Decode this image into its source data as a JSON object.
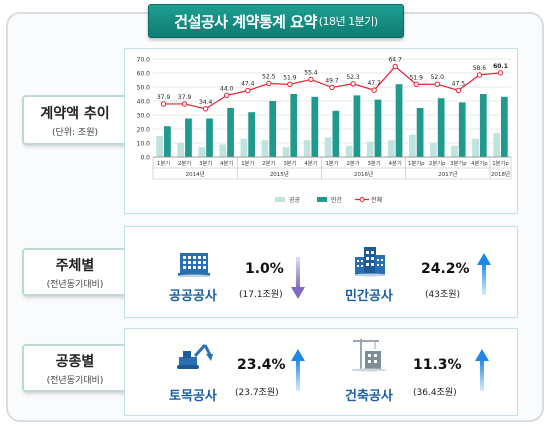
{
  "title": {
    "main": "건설공사 계약통계 요약",
    "sub": "(18년 1분기)"
  },
  "sections": {
    "trend": {
      "label": "계약액 추이",
      "note": "(단위: 조원)"
    },
    "subject": {
      "label": "주체별",
      "note": "(전년동기대비)"
    },
    "work": {
      "label": "공종별",
      "note": "(전년동기대비)"
    }
  },
  "metrics": {
    "public": {
      "name": "공공공사",
      "pct": "1.0%",
      "amount": "(17.1조원)",
      "direction": "down"
    },
    "private": {
      "name": "민간공사",
      "pct": "24.2%",
      "amount": "(43조원)",
      "direction": "up"
    },
    "civil": {
      "name": "토목공사",
      "pct": "23.4%",
      "amount": "(23.7조원)",
      "direction": "up"
    },
    "building": {
      "name": "건축공사",
      "pct": "11.3%",
      "amount": "(36.4조원)",
      "direction": "up"
    }
  },
  "colors": {
    "public_bar": "#bfe3df",
    "private_bar": "#1f9a8c",
    "total_line": "#e4202f",
    "arrow_up": "#1e88e5",
    "arrow_down": "#8e7cc3",
    "title_bg": "#0e7c72"
  },
  "icons": {
    "public": "public-building-icon",
    "private": "private-building-icon",
    "civil": "excavator-icon",
    "building": "crane-building-icon"
  },
  "chart_data": {
    "type": "bar",
    "categories": [
      "1분기",
      "2분기",
      "3분기",
      "4분기",
      "1분기",
      "2분기",
      "3분기",
      "4분기",
      "1분기",
      "2분기",
      "3분기",
      "4분기",
      "1분기p",
      "2분기p",
      "3분기p",
      "4분기p",
      "1분기p"
    ],
    "year_groups": [
      {
        "label": "2014년",
        "count": 4
      },
      {
        "label": "2015년",
        "count": 4
      },
      {
        "label": "2016년",
        "count": 4
      },
      {
        "label": "2017년",
        "count": 4
      },
      {
        "label": "2018년",
        "count": 1
      }
    ],
    "series": [
      {
        "name": "공공",
        "type": "bar",
        "values": [
          15,
          10,
          7,
          9,
          13,
          12,
          7,
          12,
          14,
          8,
          11,
          12,
          16,
          10,
          8,
          13,
          17
        ]
      },
      {
        "name": "민간",
        "type": "bar",
        "values": [
          22,
          27.5,
          27.5,
          35,
          32,
          40,
          45,
          43,
          33,
          44,
          41,
          52,
          35,
          42,
          39,
          45,
          43
        ]
      },
      {
        "name": "전체",
        "type": "line",
        "values": [
          37.9,
          37.9,
          34.4,
          44.0,
          47.4,
          52.5,
          51.9,
          55.4,
          49.7,
          52.3,
          47.7,
          64.7,
          51.9,
          52.0,
          47.5,
          58.6,
          60.1
        ]
      }
    ],
    "data_labels": [
      "37.9",
      "37.9",
      "34.4",
      "44.0",
      "47.4",
      "52.5",
      "51.9",
      "55.4",
      "49.7",
      "52.3",
      "47.7",
      "64.7",
      "51.9",
      "52.0",
      "47.5",
      "58.6",
      "60.1"
    ],
    "ylim": [
      0,
      70
    ],
    "yticks": [
      "0.0",
      "10.0",
      "20.0",
      "30.0",
      "40.0",
      "50.0",
      "60.0",
      "70.0"
    ],
    "grid": true,
    "legend_position": "bottom"
  }
}
